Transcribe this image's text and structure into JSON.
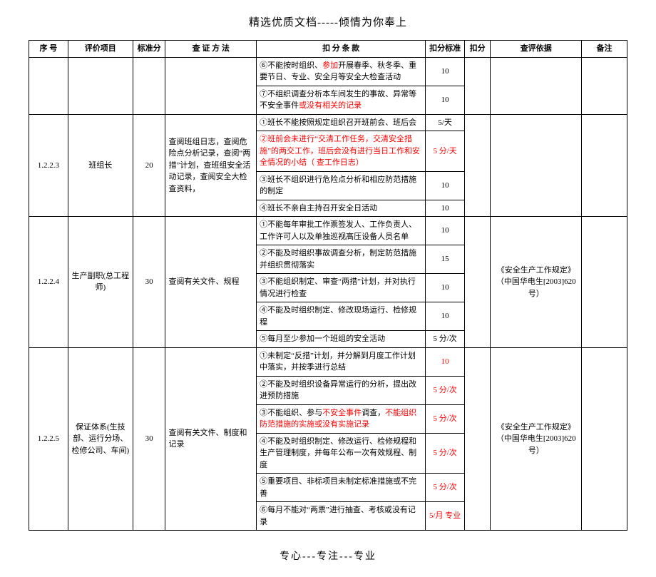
{
  "header": "精选优质文档-----倾情为你奉上",
  "footer": "专心---专注---专业",
  "columns": {
    "seq": "序  号",
    "item": "评价项目",
    "std": "标准分",
    "method": "查 证 方 法",
    "clause": "扣  分  条  款",
    "kfstd": "扣分标准",
    "kf": "扣分",
    "basis": "查评依据",
    "note": "备注"
  },
  "pre_rows": [
    {
      "clause": "⑥不能按时组织、<span class='red'>参加</span>开展春季、秋冬季、重要节日、专业、安全月等安全大检查活动",
      "kfstd": "10"
    },
    {
      "clause": "⑦不组织调查分析本车间发生的事故、异常等不安全事件<span class='red'>或没有相关的记录</span>",
      "kfstd": "10"
    }
  ],
  "groups": [
    {
      "seq": "1.2.2.3",
      "item": "班组长",
      "std": "20",
      "method": "查阅班组日志，查阅危险点分析记录，查阅“两措”计划，查班组安全活动记录，查阅安全大检查资料，",
      "basis": "",
      "rows": [
        {
          "clause": "①班长不能按照规定组织召开班前会、班后会",
          "kfstd": "5/天"
        },
        {
          "clause": "<span class='red'>②班前会未进行“交清工作任务，交清安全措施”的两交工作，班后会没有进行当日工作和安全情况的小结（ 查工作日志）</span>",
          "kfstd": "<span class='red'>5 分/天</span>"
        },
        {
          "clause": "③班长不组织进行危险点分析和相应防范措施的制定",
          "kfstd": "10"
        },
        {
          "clause": "④班长不亲自主持召开安全日活动",
          "kfstd": "10"
        }
      ]
    },
    {
      "seq": "1.2.2.4",
      "item": "生产副职(总工程师)",
      "std": "30",
      "method": "查阅有关文件、规程",
      "basis": "《安全生产工作规定》（中国华电生[2003]620 号）",
      "rows": [
        {
          "clause": "①不能每年审批工作票签发人、工作负责人、工作许可人以及单独巡视高压设备人员名单",
          "kfstd": "10"
        },
        {
          "clause": "②不能及时组织事故调查分析，制定防范措施并组织贯彻落实",
          "kfstd": "15"
        },
        {
          "clause": "③不能组织制定、审查“两措”计划，并对执行情况进行检查",
          "kfstd": "10"
        },
        {
          "clause": "④不能及时组织制定、修改现场运行、检修规程",
          "kfstd": "10"
        },
        {
          "clause": "⑤每月至少参加一个班组的安全活动",
          "kfstd": "5 分/次"
        }
      ]
    },
    {
      "seq": "1.2.2.5",
      "item": "保证体系(生技部、运行分场、检修公司、车间)",
      "std": "30",
      "method": "查阅有关文件、制度和记录",
      "basis": "《安全生产工作规定》（中国华电生[2003]620 号）",
      "rows": [
        {
          "clause": "①未制定“反措”计划，并分解到月度工作计划中落实，并按季进行总结",
          "kfstd": "<span class='red'>10</span>"
        },
        {
          "clause": "②不能及时组织设备异常运行的分析，提出改进预防措施",
          "kfstd": "<span class='red'>5 分/次</span>"
        },
        {
          "clause": "③不能组织、参与<span class='red'>不安全事件</span>调查，<span class='red'>不能组织防范措施的实施或没有实施记录</span>",
          "kfstd": "<span class='red'>5 分/次</span>"
        },
        {
          "clause": "④不能及时组织制定、修改运行、检修规程和生产管理制度，并每年公布一次有效规程、制度",
          "kfstd": "<span class='red'>5 分/次</span>"
        },
        {
          "clause": "⑤重要项目、非标项目未制定标准措施或不完善",
          "kfstd": "<span class='red'>5 分/次</span>"
        },
        {
          "clause": "⑥每月不能对“两票”进行抽查、考核或没有记录",
          "kfstd": "<span class='red'>5/月 专业</span>"
        }
      ]
    }
  ]
}
